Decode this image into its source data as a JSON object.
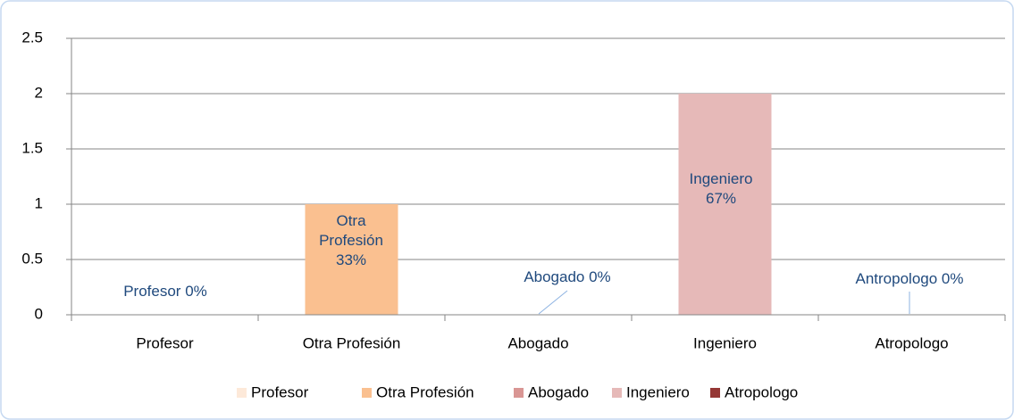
{
  "chart_data": {
    "type": "bar",
    "categories": [
      "Profesor",
      "Otra Profesión",
      "Abogado",
      "Ingeniero",
      "Atropologo"
    ],
    "values": [
      0,
      1,
      0,
      2,
      0
    ],
    "colors": [
      "#fde9d9",
      "#fac090",
      "#d99694",
      "#e6b9b8",
      "#953735"
    ],
    "data_labels": [
      "Profesor 0%",
      "Otra Profesión 33%",
      "Abogado 0%",
      "Ingeniero 67%",
      "Antropologo 0%"
    ],
    "legend": [
      "Profesor",
      "Otra Profesión",
      "Abogado",
      "Ingeniero",
      "Atropologo"
    ],
    "ylim": [
      0,
      2.5
    ],
    "yticks": [
      0,
      0.5,
      1,
      1.5,
      2,
      2.5
    ],
    "grid": true,
    "legend_position": "bottom"
  }
}
